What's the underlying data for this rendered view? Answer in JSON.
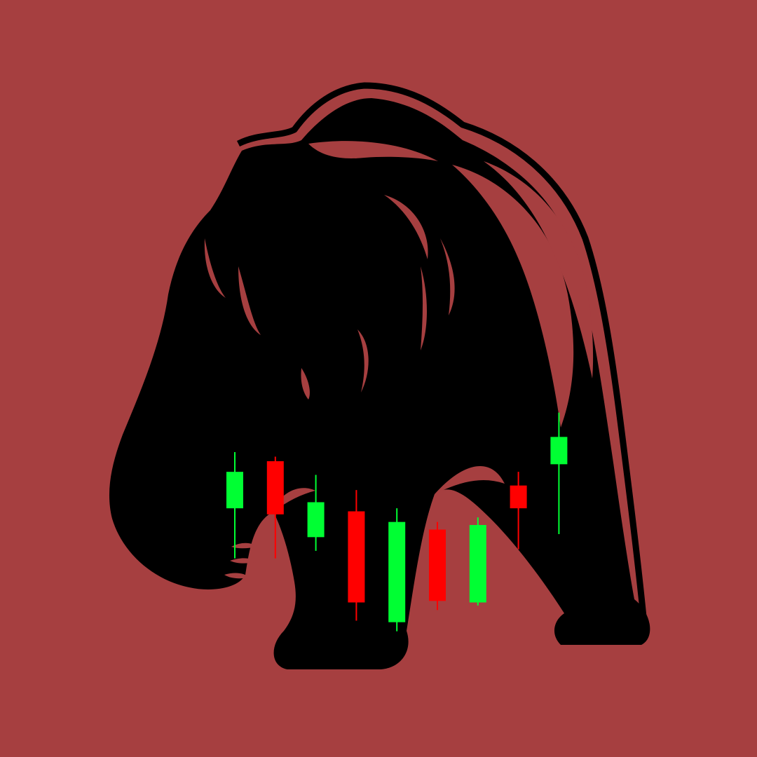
{
  "colors": {
    "background": "#a63f40",
    "silhouette": "#000000",
    "bullish": "#00ff33",
    "bearish": "#ff0000"
  },
  "illustration": {
    "subject": "bear-silhouette-icon",
    "candlesticks": [
      {
        "direction": "up",
        "open": 0.33,
        "close": 0.57,
        "high": 0.7,
        "low": 0.0
      },
      {
        "direction": "down",
        "open": 0.64,
        "close": 0.29,
        "high": 0.67,
        "low": 0.0
      },
      {
        "direction": "up",
        "open": 0.14,
        "close": 0.37,
        "high": 0.55,
        "low": 0.05
      },
      {
        "direction": "down",
        "open": 0.31,
        "close": -0.29,
        "high": 0.45,
        "low": -0.41
      },
      {
        "direction": "up",
        "open": -0.42,
        "close": 0.24,
        "high": 0.33,
        "low": -0.48
      },
      {
        "direction": "down",
        "open": 0.19,
        "close": -0.28,
        "high": 0.24,
        "low": -0.34
      },
      {
        "direction": "up",
        "open": -0.29,
        "close": 0.22,
        "high": 0.27,
        "low": -0.31
      },
      {
        "direction": "down",
        "open": 0.48,
        "close": 0.33,
        "high": 0.57,
        "low": 0.06
      },
      {
        "direction": "up",
        "open": 0.62,
        "close": 0.8,
        "high": 0.96,
        "low": 0.16
      }
    ]
  }
}
